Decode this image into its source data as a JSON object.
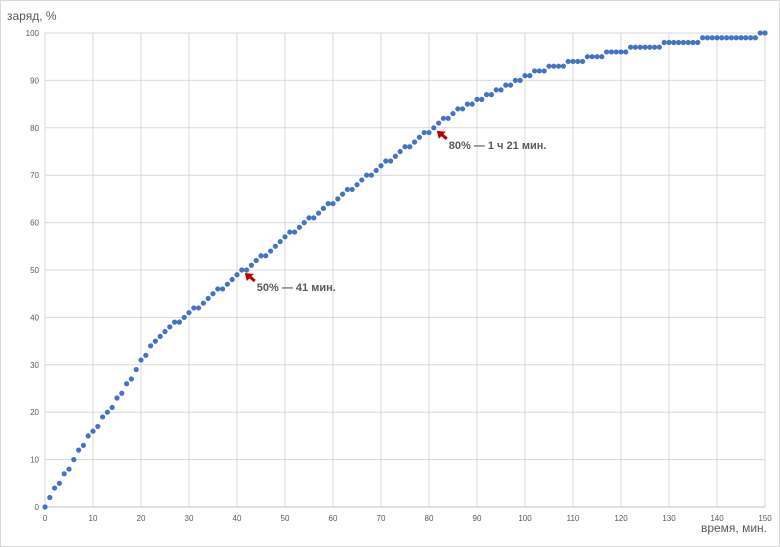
{
  "chart_data": {
    "type": "scatter",
    "title": "",
    "xlabel": "время, мин.",
    "ylabel": "заряд, %",
    "xlim": [
      0,
      150
    ],
    "ylim": [
      0,
      100
    ],
    "x_ticks": [
      0,
      10,
      20,
      30,
      40,
      50,
      60,
      70,
      80,
      90,
      100,
      110,
      120,
      130,
      140,
      150
    ],
    "y_ticks": [
      0,
      10,
      20,
      30,
      40,
      50,
      60,
      70,
      80,
      90,
      100
    ],
    "grid": true,
    "legend": "none",
    "marker_color": "#4472c4",
    "annotation_color": "#c00000",
    "series": [
      {
        "x": [
          0,
          1,
          2,
          3,
          4,
          5,
          6,
          7,
          8,
          9,
          10,
          11,
          12,
          13,
          14,
          15,
          16,
          17,
          18,
          19,
          20,
          21,
          22,
          23,
          24,
          25,
          26,
          27,
          28,
          29,
          30,
          31,
          32,
          33,
          34,
          35,
          36,
          37,
          38,
          39,
          40,
          41,
          42,
          43,
          44,
          45,
          46,
          47,
          48,
          49,
          50,
          51,
          52,
          53,
          54,
          55,
          56,
          57,
          58,
          59,
          60,
          61,
          62,
          63,
          64,
          65,
          66,
          67,
          68,
          69,
          70,
          71,
          72,
          73,
          74,
          75,
          76,
          77,
          78,
          79,
          80,
          81,
          82,
          83,
          84,
          85,
          86,
          87,
          88,
          89,
          90,
          91,
          92,
          93,
          94,
          95,
          96,
          97,
          98,
          99,
          100,
          101,
          102,
          103,
          104,
          105,
          106,
          107,
          108,
          109,
          110,
          111,
          112,
          113,
          114,
          115,
          116,
          117,
          118,
          119,
          120,
          121,
          122,
          123,
          124,
          125,
          126,
          127,
          128,
          129,
          130,
          131,
          132,
          133,
          134,
          135,
          136,
          137,
          138,
          139,
          140,
          141,
          142,
          143,
          144,
          145,
          146,
          147,
          148,
          149,
          150
        ],
        "y": [
          0,
          2,
          4,
          5,
          7,
          8,
          10,
          12,
          13,
          15,
          16,
          17,
          19,
          20,
          21,
          23,
          24,
          26,
          27,
          29,
          31,
          32,
          34,
          35,
          36,
          37,
          38,
          39,
          39,
          40,
          41,
          42,
          42,
          43,
          44,
          45,
          46,
          46,
          47,
          48,
          49,
          50,
          50,
          51,
          52,
          53,
          53,
          54,
          55,
          56,
          57,
          58,
          58,
          59,
          60,
          61,
          61,
          62,
          63,
          64,
          64,
          65,
          66,
          67,
          67,
          68,
          69,
          70,
          70,
          71,
          72,
          73,
          73,
          74,
          75,
          76,
          76,
          77,
          78,
          79,
          79,
          80,
          81,
          82,
          82,
          83,
          84,
          84,
          85,
          85,
          86,
          86,
          87,
          87,
          88,
          88,
          89,
          89,
          90,
          90,
          91,
          91,
          92,
          92,
          92,
          93,
          93,
          93,
          93,
          94,
          94,
          94,
          94,
          95,
          95,
          95,
          95,
          96,
          96,
          96,
          96,
          96,
          97,
          97,
          97,
          97,
          97,
          97,
          97,
          98,
          98,
          98,
          98,
          98,
          98,
          98,
          98,
          99,
          99,
          99,
          99,
          99,
          99,
          99,
          99,
          99,
          99,
          99,
          99,
          100,
          100
        ]
      }
    ],
    "annotations": [
      {
        "x": 41,
        "y": 50,
        "text": "50% — 41 мин."
      },
      {
        "x": 81,
        "y": 80,
        "text": "80% — 1 ч 21 мин."
      }
    ]
  }
}
